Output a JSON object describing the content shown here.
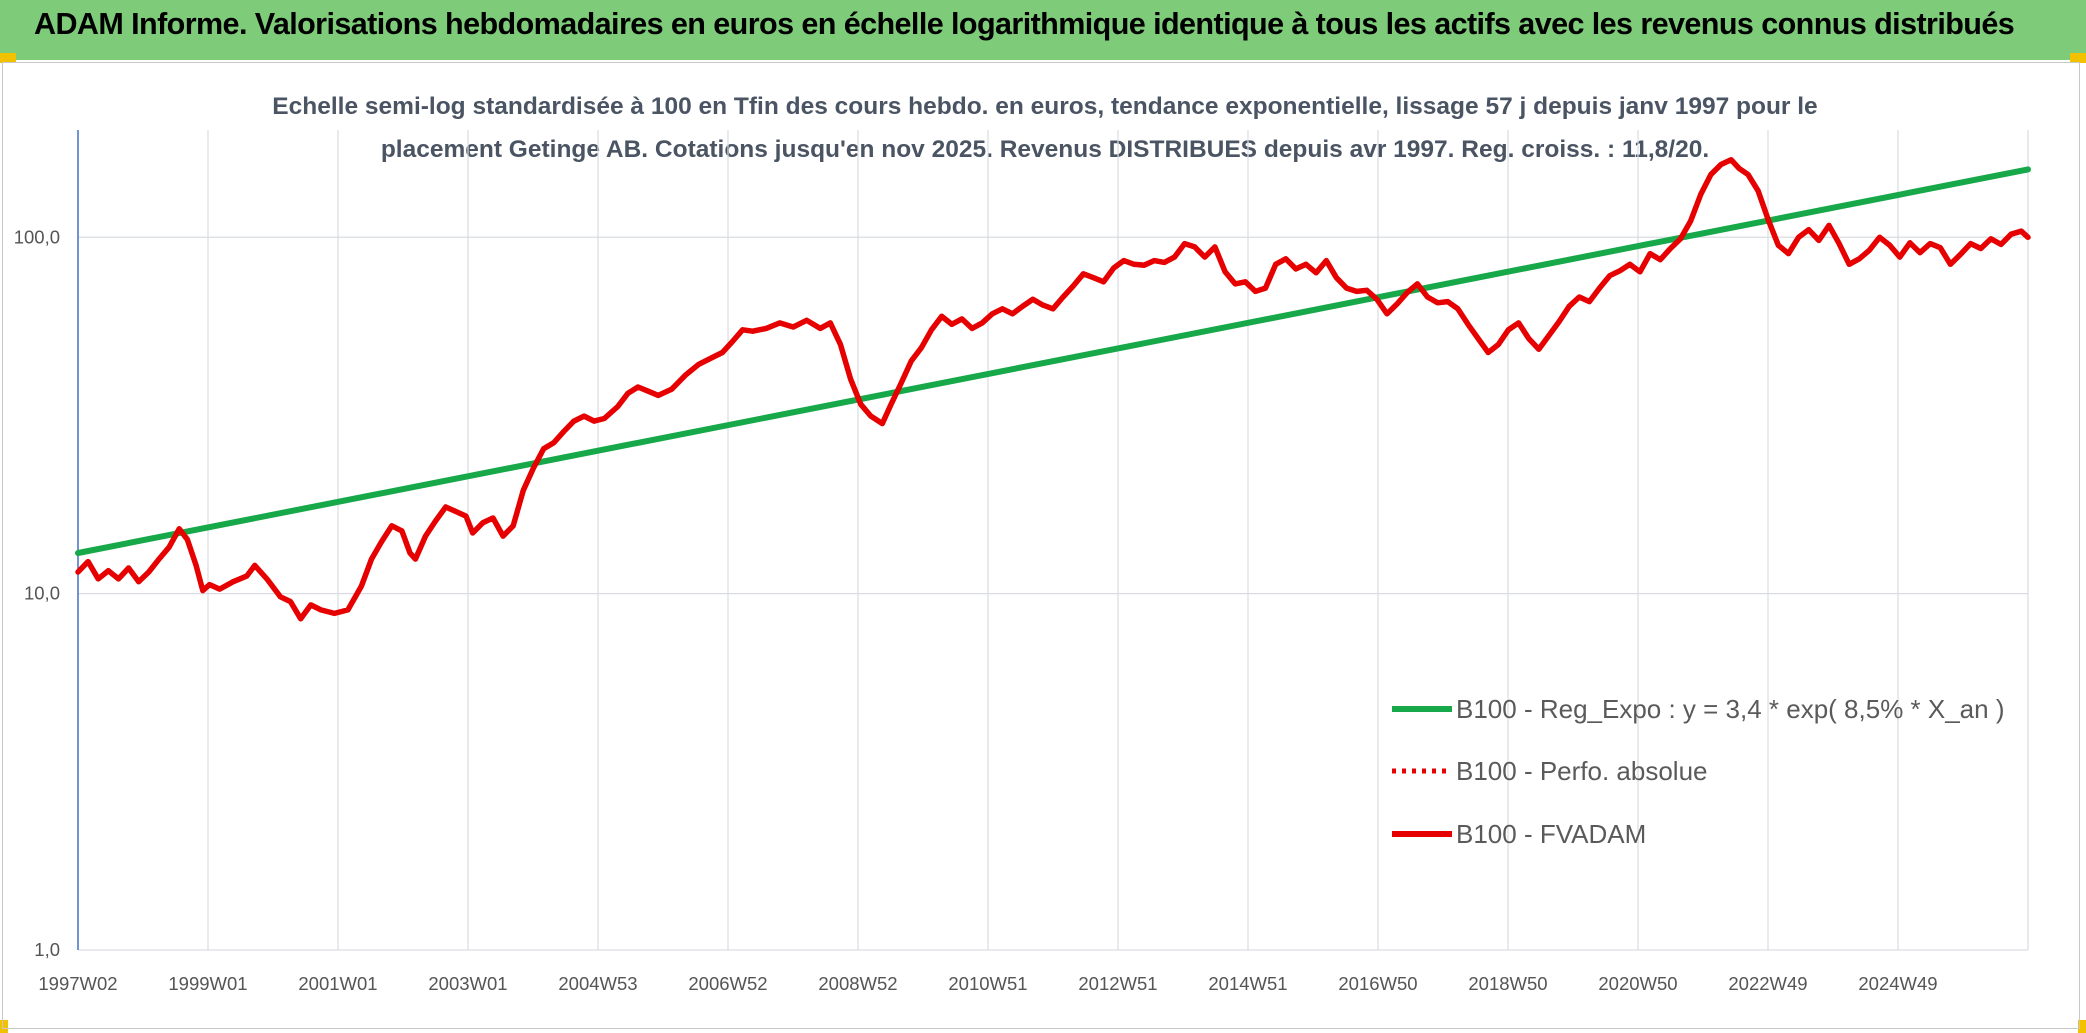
{
  "header": {
    "title": "ADAM Informe. Valorisations hebdomadaires en euros en échelle logarithmique identique à tous les actifs avec les revenus connus distribués"
  },
  "colors": {
    "banner": "#7ecb7a",
    "accent_corner": "#f2c200",
    "regression": "#17a84a",
    "price": "#e60000"
  },
  "chart_data": {
    "type": "line",
    "subtitle_lines": [
      "Echelle semi-log standardisée à 100 en Tfin des cours hebdo. en euros, tendance exponentielle, lissage 57 j depuis janv 1997 pour le",
      "placement Getinge AB. Cotations jusqu'en nov 2025. Revenus DISTRIBUES depuis avr 1997. Reg. croiss. : 11,8/20."
    ],
    "y_scale": "log",
    "ylim": [
      1,
      200
    ],
    "y_ticks": [
      "1,0",
      "10,0",
      "100,0"
    ],
    "xlim": [
      1997.0,
      2025.9
    ],
    "x_ticks": [
      "1997W02",
      "1999W01",
      "2001W01",
      "2003W01",
      "2004W53",
      "2006W52",
      "2008W52",
      "2010W51",
      "2012W51",
      "2014W51",
      "2016W50",
      "2018W50",
      "2020W50",
      "2022W49",
      "2024W49"
    ],
    "grid": "vertical",
    "legend_position": "bottom-right",
    "series": [
      {
        "name": "B100 - Reg_Expo : y = 3,4 * exp( 8,5% *  X_an )",
        "style": "solid",
        "color": "#17a84a",
        "points": [
          [
            1997.0,
            13.0
          ],
          [
            2025.9,
            155.0
          ]
        ]
      },
      {
        "name": "B100 - Perfo. absolue",
        "style": "dotted",
        "color": "#e60000",
        "points": []
      },
      {
        "name": "B100 - FVADAM",
        "style": "solid",
        "color": "#e60000",
        "points": [
          [
            1997.0,
            11.5
          ],
          [
            1997.15,
            12.3
          ],
          [
            1997.3,
            11.0
          ],
          [
            1997.45,
            11.6
          ],
          [
            1997.6,
            11.0
          ],
          [
            1997.75,
            11.8
          ],
          [
            1997.9,
            10.8
          ],
          [
            1998.05,
            11.5
          ],
          [
            1998.2,
            12.5
          ],
          [
            1998.35,
            13.5
          ],
          [
            1998.5,
            15.2
          ],
          [
            1998.62,
            14.2
          ],
          [
            1998.75,
            12.0
          ],
          [
            1998.85,
            10.2
          ],
          [
            1998.95,
            10.6
          ],
          [
            1999.1,
            10.3
          ],
          [
            1999.3,
            10.8
          ],
          [
            1999.5,
            11.2
          ],
          [
            1999.62,
            12.0
          ],
          [
            1999.8,
            11.0
          ],
          [
            2000.0,
            9.8
          ],
          [
            2000.15,
            9.5
          ],
          [
            2000.3,
            8.5
          ],
          [
            2000.45,
            9.3
          ],
          [
            2000.6,
            9.0
          ],
          [
            2000.8,
            8.8
          ],
          [
            2001.0,
            9.0
          ],
          [
            2001.2,
            10.5
          ],
          [
            2001.35,
            12.5
          ],
          [
            2001.5,
            14.0
          ],
          [
            2001.65,
            15.5
          ],
          [
            2001.8,
            15.0
          ],
          [
            2001.92,
            13.0
          ],
          [
            2002.0,
            12.5
          ],
          [
            2002.15,
            14.5
          ],
          [
            2002.3,
            16.0
          ],
          [
            2002.45,
            17.5
          ],
          [
            2002.6,
            17.0
          ],
          [
            2002.75,
            16.5
          ],
          [
            2002.85,
            14.8
          ],
          [
            2003.0,
            15.8
          ],
          [
            2003.15,
            16.3
          ],
          [
            2003.3,
            14.5
          ],
          [
            2003.45,
            15.5
          ],
          [
            2003.6,
            19.5
          ],
          [
            2003.75,
            22.5
          ],
          [
            2003.9,
            25.5
          ],
          [
            2004.05,
            26.5
          ],
          [
            2004.2,
            28.5
          ],
          [
            2004.35,
            30.5
          ],
          [
            2004.5,
            31.5
          ],
          [
            2004.65,
            30.5
          ],
          [
            2004.8,
            31.0
          ],
          [
            2005.0,
            33.5
          ],
          [
            2005.15,
            36.5
          ],
          [
            2005.3,
            38.0
          ],
          [
            2005.45,
            37.0
          ],
          [
            2005.6,
            36.0
          ],
          [
            2005.8,
            37.5
          ],
          [
            2006.0,
            41.0
          ],
          [
            2006.2,
            44.0
          ],
          [
            2006.4,
            46.0
          ],
          [
            2006.55,
            47.5
          ],
          [
            2006.7,
            51.0
          ],
          [
            2006.85,
            55.0
          ],
          [
            2007.0,
            54.5
          ],
          [
            2007.2,
            55.5
          ],
          [
            2007.4,
            57.5
          ],
          [
            2007.6,
            56.0
          ],
          [
            2007.8,
            58.5
          ],
          [
            2008.0,
            55.5
          ],
          [
            2008.15,
            57.5
          ],
          [
            2008.3,
            50.0
          ],
          [
            2008.45,
            40.0
          ],
          [
            2008.6,
            34.0
          ],
          [
            2008.75,
            31.5
          ],
          [
            2008.92,
            30.0
          ],
          [
            2009.05,
            34.0
          ],
          [
            2009.2,
            39.0
          ],
          [
            2009.35,
            45.0
          ],
          [
            2009.5,
            49.0
          ],
          [
            2009.65,
            55.0
          ],
          [
            2009.8,
            60.0
          ],
          [
            2009.95,
            57.0
          ],
          [
            2010.1,
            59.0
          ],
          [
            2010.25,
            55.5
          ],
          [
            2010.4,
            57.5
          ],
          [
            2010.55,
            61.0
          ],
          [
            2010.7,
            63.0
          ],
          [
            2010.85,
            61.0
          ],
          [
            2011.0,
            64.0
          ],
          [
            2011.15,
            67.0
          ],
          [
            2011.3,
            64.5
          ],
          [
            2011.45,
            63.0
          ],
          [
            2011.6,
            68.0
          ],
          [
            2011.75,
            73.0
          ],
          [
            2011.9,
            79.0
          ],
          [
            2012.05,
            77.0
          ],
          [
            2012.2,
            75.0
          ],
          [
            2012.35,
            82.0
          ],
          [
            2012.5,
            86.0
          ],
          [
            2012.65,
            84.0
          ],
          [
            2012.8,
            83.5
          ],
          [
            2012.95,
            86.0
          ],
          [
            2013.1,
            85.0
          ],
          [
            2013.25,
            88.0
          ],
          [
            2013.4,
            96.0
          ],
          [
            2013.55,
            94.0
          ],
          [
            2013.7,
            88.0
          ],
          [
            2013.85,
            94.0
          ],
          [
            2014.0,
            80.0
          ],
          [
            2014.15,
            74.0
          ],
          [
            2014.3,
            75.0
          ],
          [
            2014.45,
            70.5
          ],
          [
            2014.6,
            72.0
          ],
          [
            2014.75,
            84.0
          ],
          [
            2014.9,
            87.0
          ],
          [
            2015.05,
            81.5
          ],
          [
            2015.2,
            84.0
          ],
          [
            2015.35,
            79.5
          ],
          [
            2015.5,
            86.0
          ],
          [
            2015.65,
            77.0
          ],
          [
            2015.8,
            72.0
          ],
          [
            2015.95,
            70.5
          ],
          [
            2016.1,
            71.0
          ],
          [
            2016.25,
            67.0
          ],
          [
            2016.4,
            61.0
          ],
          [
            2016.55,
            65.0
          ],
          [
            2016.7,
            70.0
          ],
          [
            2016.85,
            74.0
          ],
          [
            2017.0,
            68.0
          ],
          [
            2017.15,
            65.5
          ],
          [
            2017.3,
            66.0
          ],
          [
            2017.45,
            63.0
          ],
          [
            2017.6,
            57.0
          ],
          [
            2017.75,
            52.0
          ],
          [
            2017.9,
            47.5
          ],
          [
            2018.05,
            50.0
          ],
          [
            2018.2,
            55.0
          ],
          [
            2018.35,
            57.5
          ],
          [
            2018.5,
            52.0
          ],
          [
            2018.65,
            48.5
          ],
          [
            2018.8,
            53.0
          ],
          [
            2018.95,
            58.0
          ],
          [
            2019.1,
            64.0
          ],
          [
            2019.25,
            68.0
          ],
          [
            2019.4,
            66.0
          ],
          [
            2019.55,
            72.0
          ],
          [
            2019.7,
            78.0
          ],
          [
            2019.85,
            80.5
          ],
          [
            2020.0,
            84.0
          ],
          [
            2020.15,
            80.0
          ],
          [
            2020.3,
            90.0
          ],
          [
            2020.45,
            86.5
          ],
          [
            2020.6,
            93.0
          ],
          [
            2020.75,
            99.0
          ],
          [
            2020.9,
            111.0
          ],
          [
            2021.05,
            132.0
          ],
          [
            2021.2,
            150.0
          ],
          [
            2021.35,
            160.0
          ],
          [
            2021.5,
            165.0
          ],
          [
            2021.62,
            156.0
          ],
          [
            2021.75,
            150.0
          ],
          [
            2021.9,
            135.0
          ],
          [
            2022.05,
            112.0
          ],
          [
            2022.2,
            95.0
          ],
          [
            2022.35,
            90.0
          ],
          [
            2022.5,
            100.0
          ],
          [
            2022.65,
            105.0
          ],
          [
            2022.8,
            98.0
          ],
          [
            2022.95,
            108.0
          ],
          [
            2023.1,
            96.0
          ],
          [
            2023.25,
            84.0
          ],
          [
            2023.4,
            87.0
          ],
          [
            2023.55,
            92.0
          ],
          [
            2023.7,
            100.0
          ],
          [
            2023.85,
            95.0
          ],
          [
            2024.0,
            88.0
          ],
          [
            2024.15,
            96.5
          ],
          [
            2024.3,
            90.5
          ],
          [
            2024.45,
            96.0
          ],
          [
            2024.6,
            93.5
          ],
          [
            2024.75,
            84.0
          ],
          [
            2024.9,
            89.5
          ],
          [
            2025.05,
            96.0
          ],
          [
            2025.2,
            93.0
          ],
          [
            2025.35,
            99.0
          ],
          [
            2025.5,
            95.5
          ],
          [
            2025.65,
            102.0
          ],
          [
            2025.8,
            104.0
          ],
          [
            2025.9,
            100.0
          ]
        ]
      }
    ]
  }
}
